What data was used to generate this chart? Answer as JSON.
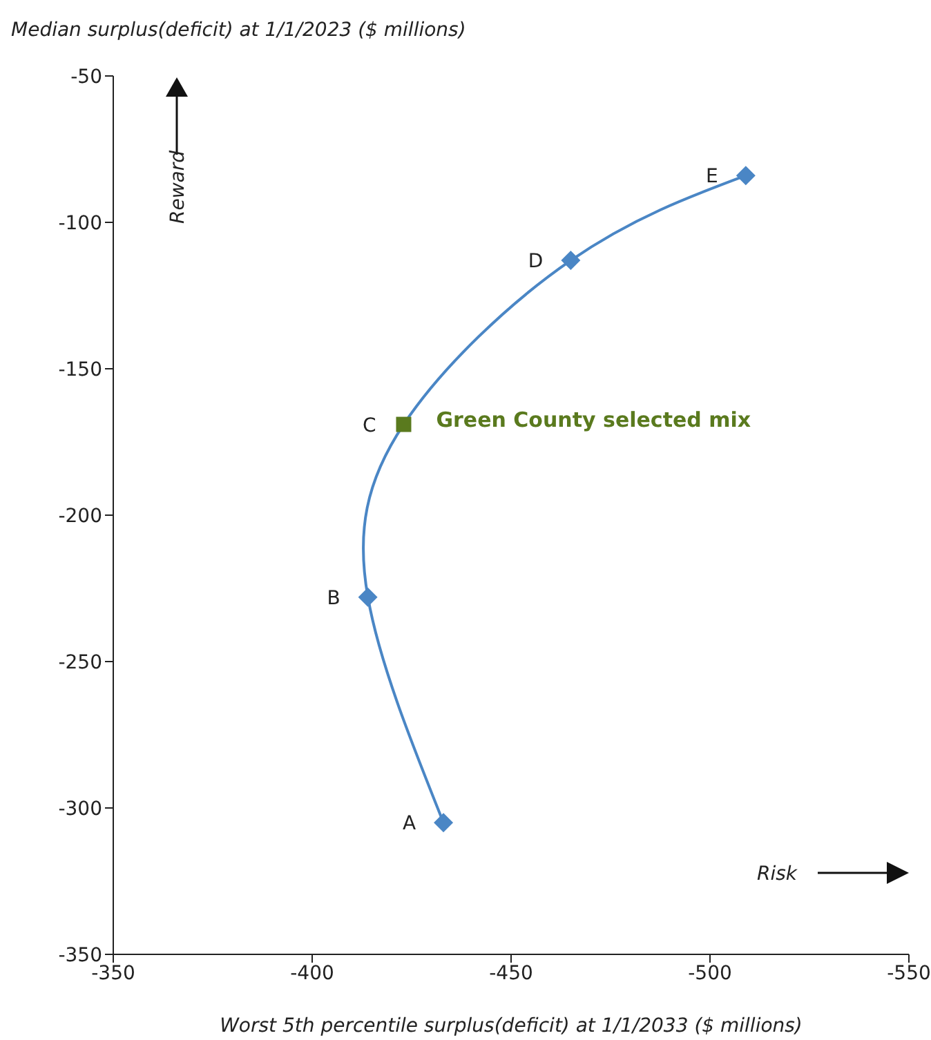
{
  "chart_data": {
    "type": "scatter",
    "title": "Median surplus(deficit) at 1/1/2023 ($ millions)",
    "xlabel": "Worst 5th percentile surplus(deficit) at 1/1/2033 ($ millions)",
    "xlim": [
      -350,
      -550
    ],
    "xticks": [
      -350,
      -400,
      -450,
      -500,
      -550
    ],
    "ylim": [
      -350,
      -50
    ],
    "yticks": [
      -350,
      -300,
      -250,
      -200,
      -150,
      -100,
      -50
    ],
    "grid": false,
    "legend": false,
    "series": [
      {
        "type": "line",
        "color": "#4a86c5",
        "marker": "none",
        "x": [
          -433,
          -414,
          -423,
          -465,
          -509
        ],
        "values": [
          -305,
          -228,
          -169,
          -113,
          -84
        ]
      },
      {
        "color": "#4a86c5",
        "marker": "diamond",
        "x": [
          -433,
          -414,
          -465,
          -509
        ],
        "values": [
          -305,
          -228,
          -113,
          -84
        ]
      },
      {
        "name": "Green County selected mix",
        "color": "#5a7a1e",
        "marker": "square",
        "x": [
          -423
        ],
        "values": [
          -169
        ]
      }
    ],
    "annotations": [
      "Reward",
      "Risk",
      {
        "text": "A",
        "x": -433,
        "y": -305
      },
      {
        "text": "B",
        "x": -414,
        "y": -228
      },
      {
        "text": "C",
        "x": -423,
        "y": -169
      },
      {
        "text": "D",
        "x": -465,
        "y": -113
      },
      {
        "text": "E",
        "x": -509,
        "y": -84
      }
    ]
  }
}
